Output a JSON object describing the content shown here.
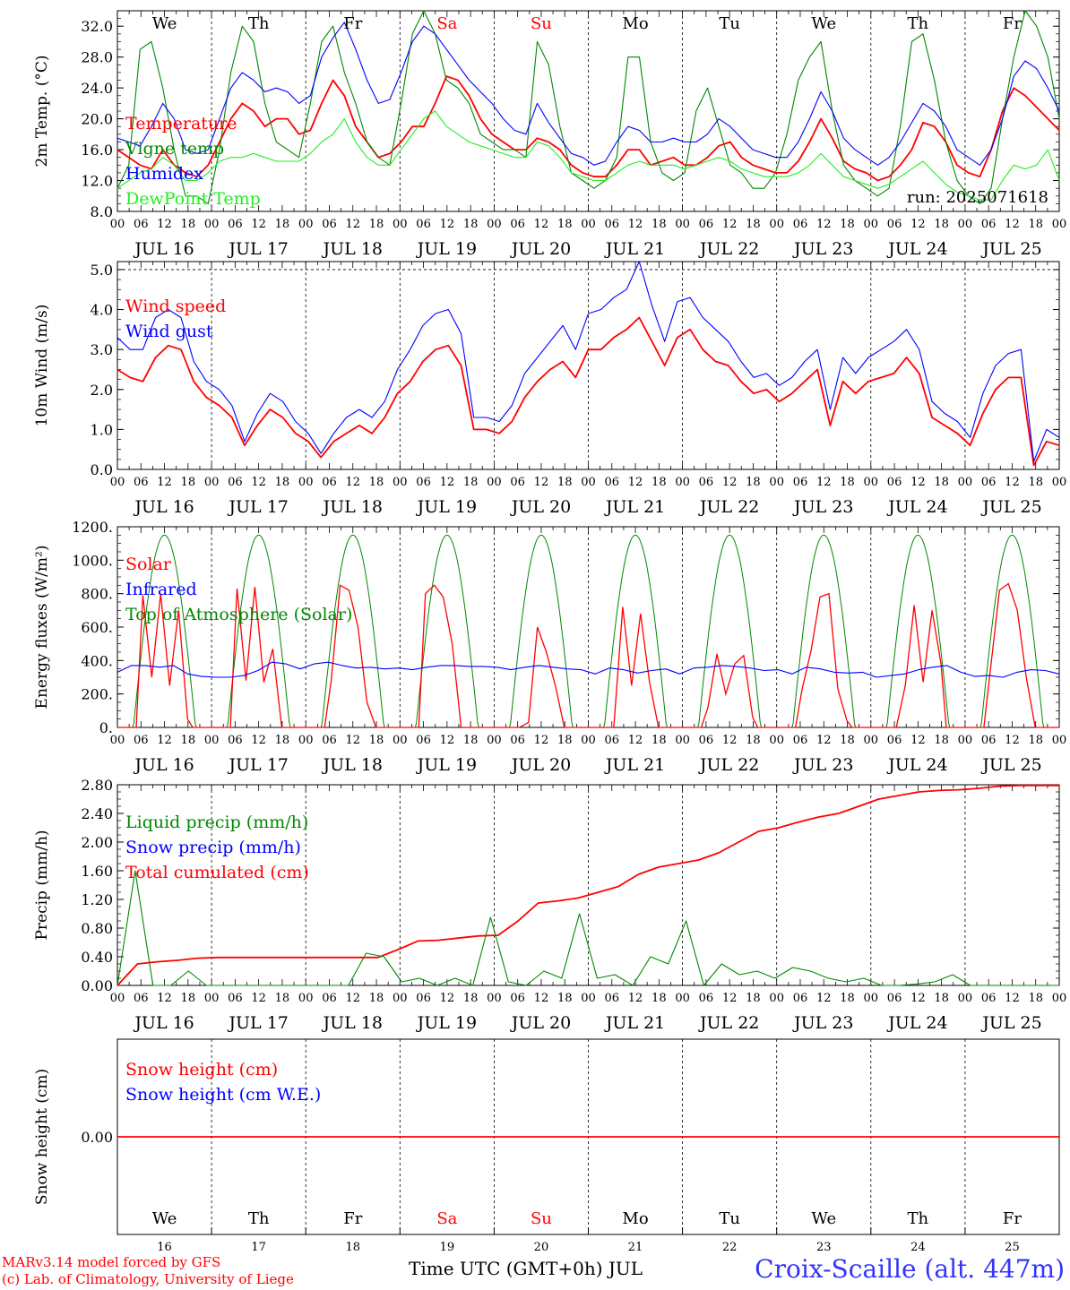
{
  "footer": {
    "model_line": "MARv3.14 model forced by GFS",
    "copyright_line": "(c) Lab. of Climatology, University of Liege",
    "xlabel": "Time UTC (GMT+0h) JUL",
    "station": "Croix-Scaille (alt. 447m)"
  },
  "colors": {
    "red": "#ff0000",
    "green": "#008800",
    "blue": "#0000ff",
    "lime": "#22ee22",
    "black": "#000000"
  },
  "chart_data": [
    {
      "type": "line",
      "ylabel": "2m Temp. (°C)",
      "ylim": [
        8,
        34
      ],
      "yticks": [
        "8.0",
        "12.0",
        "16.0",
        "20.0",
        "24.0",
        "28.0",
        "32.0"
      ],
      "run_label": "run: 2025071618",
      "day_labels": [
        "We",
        "Th",
        "Fr",
        "Sa",
        "Su",
        "Mo",
        "Tu",
        "We",
        "Th",
        "Fr"
      ],
      "day_label_colors": [
        "black",
        "black",
        "black",
        "red",
        "red",
        "black",
        "black",
        "black",
        "black",
        "black"
      ],
      "date_labels": [
        "JUL 16",
        "JUL 17",
        "JUL 18",
        "JUL 19",
        "JUL 20",
        "JUL 21",
        "JUL 22",
        "JUL 23",
        "JUL 24",
        "JUL 25"
      ],
      "hour_ticks": [
        "00",
        "06",
        "12",
        "18"
      ],
      "legend": [
        "Temperature",
        "Vigne temp",
        "Humidex",
        "DewPoint Temp"
      ],
      "series": [
        {
          "name": "Temperature",
          "color": "red",
          "values": [
            16,
            15,
            14,
            13.5,
            16,
            14,
            13,
            12.5,
            14,
            17,
            20,
            22,
            21,
            19,
            20,
            20,
            18,
            18.5,
            22,
            25,
            23,
            19,
            17,
            15,
            15.5,
            17,
            19,
            19,
            22,
            25.5,
            25,
            23,
            20,
            18,
            17,
            16,
            16,
            17.5,
            17,
            16,
            14,
            13,
            12.5,
            12.5,
            14,
            16,
            16,
            14,
            14.5,
            15,
            14,
            14,
            15,
            16.5,
            17,
            15,
            14,
            13.5,
            13,
            13,
            14.5,
            17,
            20,
            17.5,
            14.5,
            13.5,
            13,
            12,
            12.5,
            14,
            16,
            19.5,
            19,
            17,
            14,
            13,
            12.5,
            16,
            21,
            24,
            23,
            21.5,
            20,
            18.5
          ]
        },
        {
          "name": "Vigne temp",
          "color": "green",
          "values": [
            11,
            14,
            29,
            30,
            24,
            16,
            10,
            10,
            9,
            16,
            26,
            32,
            30,
            22,
            17,
            16,
            15,
            22,
            30,
            32,
            26,
            22,
            17,
            15,
            14,
            22,
            31,
            34,
            31,
            25,
            24,
            22,
            18,
            17,
            16,
            16,
            15,
            30,
            27,
            19,
            13,
            12,
            11,
            12,
            15,
            28,
            28,
            17,
            13,
            12,
            13,
            21,
            24,
            19,
            14,
            13,
            11,
            11,
            13,
            18,
            25,
            28,
            30,
            21,
            14,
            12,
            11,
            10,
            11,
            19,
            30,
            31,
            25,
            17,
            12,
            10,
            9,
            11,
            20,
            28,
            34,
            32,
            28,
            20
          ]
        },
        {
          "name": "Humidex",
          "color": "blue",
          "values": [
            17.5,
            17,
            16.5,
            19,
            22,
            20,
            16,
            15.5,
            16,
            20,
            24,
            26,
            25,
            23.5,
            24,
            23.5,
            22,
            23,
            28,
            30.5,
            32.5,
            29,
            25,
            22,
            22.5,
            26,
            30,
            32,
            31,
            29,
            27,
            25,
            23.5,
            22,
            20,
            18.5,
            18,
            22,
            19.5,
            17.5,
            15.5,
            15,
            14,
            14.5,
            17,
            19,
            18.5,
            17,
            17,
            17.5,
            17,
            17,
            18,
            20,
            19,
            17.5,
            16,
            15.5,
            15,
            15,
            17,
            20,
            23.5,
            21,
            17.5,
            16,
            15,
            14,
            15,
            17,
            19.5,
            22,
            21,
            19,
            16,
            15,
            14,
            16,
            20,
            25.5,
            27.5,
            26.5,
            24,
            21
          ]
        },
        {
          "name": "DewPoint Temp",
          "color": "lime",
          "values": [
            11,
            12,
            13,
            13.5,
            15,
            14,
            12,
            12,
            13,
            14.5,
            15,
            15,
            15.5,
            15,
            14.5,
            14.5,
            14.5,
            15.5,
            17,
            18,
            20,
            17,
            15,
            14,
            14,
            16,
            18,
            20,
            21,
            19,
            18,
            17,
            16.5,
            16,
            15.5,
            15,
            15,
            17,
            16.5,
            15,
            13,
            12.5,
            12,
            12,
            13,
            14,
            14.5,
            14,
            14,
            14,
            13.5,
            14,
            14.5,
            15,
            14.5,
            13.5,
            13,
            12.5,
            12.5,
            12.5,
            13,
            14,
            15.5,
            14,
            12.5,
            12,
            11.5,
            11,
            11.5,
            12.5,
            13.5,
            14.5,
            13,
            11.5,
            10.5,
            10,
            9.5,
            9.5,
            12,
            14,
            13.5,
            14,
            16,
            12
          ]
        }
      ]
    },
    {
      "type": "line",
      "ylabel": "10m Wind (m/s)",
      "ylim": [
        0,
        5.2
      ],
      "yticks": [
        "0.0",
        "1.0",
        "2.0",
        "3.0",
        "4.0",
        "5.0"
      ],
      "date_labels": [
        "JUL 16",
        "JUL 17",
        "JUL 18",
        "JUL 19",
        "JUL 20",
        "JUL 21",
        "JUL 22",
        "JUL 23",
        "JUL 24",
        "JUL 25"
      ],
      "hour_ticks": [
        "00",
        "06",
        "12",
        "18"
      ],
      "legend": [
        "Wind speed",
        "Wind gust"
      ],
      "series": [
        {
          "name": "Wind speed",
          "color": "red",
          "values": [
            2.5,
            2.3,
            2.2,
            2.8,
            3.1,
            3.0,
            2.2,
            1.8,
            1.6,
            1.3,
            0.6,
            1.1,
            1.5,
            1.3,
            0.9,
            0.7,
            0.3,
            0.7,
            0.9,
            1.1,
            0.9,
            1.3,
            1.9,
            2.2,
            2.7,
            3.0,
            3.1,
            2.6,
            1.0,
            1.0,
            0.9,
            1.2,
            1.8,
            2.2,
            2.5,
            2.7,
            2.3,
            3.0,
            3.0,
            3.3,
            3.5,
            3.8,
            3.2,
            2.6,
            3.3,
            3.5,
            3.0,
            2.7,
            2.6,
            2.2,
            1.9,
            2.0,
            1.7,
            1.9,
            2.2,
            2.5,
            1.1,
            2.2,
            1.9,
            2.2,
            2.3,
            2.4,
            2.8,
            2.4,
            1.3,
            1.1,
            0.9,
            0.6,
            1.4,
            2.0,
            2.3,
            2.3,
            0.1,
            0.7,
            0.6
          ]
        },
        {
          "name": "Wind gust",
          "color": "blue",
          "values": [
            3.3,
            3.0,
            3.0,
            3.8,
            4.0,
            3.8,
            2.7,
            2.2,
            2.0,
            1.6,
            0.7,
            1.4,
            1.9,
            1.7,
            1.2,
            0.9,
            0.4,
            0.9,
            1.3,
            1.5,
            1.3,
            1.7,
            2.5,
            3.0,
            3.6,
            3.9,
            4.0,
            3.4,
            1.3,
            1.3,
            1.2,
            1.6,
            2.4,
            2.8,
            3.2,
            3.6,
            3.0,
            3.9,
            4.0,
            4.3,
            4.5,
            5.2,
            4.1,
            3.2,
            4.2,
            4.3,
            3.8,
            3.5,
            3.2,
            2.7,
            2.3,
            2.4,
            2.1,
            2.3,
            2.7,
            3.0,
            1.5,
            2.8,
            2.4,
            2.8,
            3.0,
            3.2,
            3.5,
            3.0,
            1.7,
            1.4,
            1.2,
            0.8,
            1.9,
            2.6,
            2.9,
            3.0,
            0.2,
            1.0,
            0.8
          ]
        }
      ]
    },
    {
      "type": "line",
      "ylabel": "Energy fluxes (W/m²)",
      "ylim": [
        0,
        1200
      ],
      "yticks": [
        "0.",
        "200.",
        "400.",
        "600.",
        "800.",
        "1000.",
        "1200."
      ],
      "date_labels": [
        "JUL 16",
        "JUL 17",
        "JUL 18",
        "JUL 19",
        "JUL 20",
        "JUL 21",
        "JUL 22",
        "JUL 23",
        "JUL 24",
        "JUL 25"
      ],
      "hour_ticks": [
        "00",
        "06",
        "12",
        "18"
      ],
      "legend": [
        "Solar",
        "Infrared",
        "Top of Atmosphere (Solar)"
      ],
      "toa_peak": 1150,
      "solar_peaks": [
        [
          790,
          300,
          800,
          250,
          700,
          50
        ],
        [
          830,
          280,
          840,
          270,
          470,
          0
        ],
        [
          280,
          850,
          820,
          600,
          150,
          0
        ],
        [
          800,
          850,
          780,
          500,
          0,
          0
        ],
        [
          0,
          30,
          600,
          450,
          250,
          0
        ],
        [
          0,
          720,
          250,
          680,
          270,
          0
        ],
        [
          120,
          440,
          200,
          380,
          430,
          60
        ],
        [
          230,
          460,
          780,
          800,
          230,
          40
        ],
        [
          0,
          250,
          730,
          270,
          700,
          380
        ],
        [
          350,
          820,
          860,
          700,
          300,
          0
        ]
      ],
      "series": [
        {
          "name": "Infrared",
          "color": "blue",
          "values": [
            330,
            370,
            370,
            360,
            370,
            320,
            305,
            300,
            300,
            310,
            340,
            390,
            380,
            350,
            380,
            390,
            370,
            355,
            360,
            350,
            355,
            345,
            360,
            370,
            370,
            365,
            365,
            360,
            345,
            360,
            370,
            360,
            350,
            345,
            320,
            355,
            345,
            325,
            340,
            350,
            320,
            355,
            360,
            370,
            365,
            355,
            340,
            345,
            320,
            360,
            350,
            330,
            325,
            330,
            300,
            310,
            320,
            345,
            360,
            370,
            330,
            305,
            310,
            300,
            330,
            345,
            340,
            320
          ]
        }
      ]
    },
    {
      "type": "line",
      "ylabel": "Precip (mm/h)",
      "ylim": [
        0,
        2.8
      ],
      "yticks": [
        "0.00",
        "0.40",
        "0.80",
        "1.20",
        "1.60",
        "2.00",
        "2.40",
        "2.80"
      ],
      "date_labels": [
        "JUL 16",
        "JUL 17",
        "JUL 18",
        "JUL 19",
        "JUL 20",
        "JUL 21",
        "JUL 22",
        "JUL 23",
        "JUL 24",
        "JUL 25"
      ],
      "hour_ticks": [
        "00",
        "06",
        "12",
        "18"
      ],
      "legend": [
        "Liquid precip (mm/h)",
        "Snow precip (mm/h)",
        "Total cumulated (cm)"
      ],
      "series": [
        {
          "name": "Total cumulated (cm)",
          "color": "red",
          "values": [
            0,
            0.3,
            0.33,
            0.35,
            0.38,
            0.39,
            0.39,
            0.39,
            0.39,
            0.39,
            0.39,
            0.39,
            0.39,
            0.39,
            0.5,
            0.62,
            0.63,
            0.66,
            0.69,
            0.7,
            0.9,
            1.15,
            1.18,
            1.22,
            1.3,
            1.38,
            1.55,
            1.65,
            1.7,
            1.75,
            1.85,
            2.0,
            2.15,
            2.2,
            2.28,
            2.35,
            2.4,
            2.5,
            2.6,
            2.65,
            2.7,
            2.72,
            2.73,
            2.75,
            2.78,
            2.79,
            2.79,
            2.79
          ]
        },
        {
          "name": "Liquid precip (mm/h)",
          "color": "green",
          "values": [
            0,
            1.6,
            0,
            0,
            0.2,
            0,
            0,
            0,
            0,
            0,
            0,
            0,
            0,
            0,
            0.45,
            0.4,
            0.05,
            0.1,
            0,
            0.1,
            0,
            0.95,
            0.05,
            0,
            0.2,
            0.1,
            1.0,
            0.1,
            0.15,
            0,
            0.4,
            0.3,
            0.9,
            0,
            0.3,
            0.15,
            0.2,
            0.1,
            0.25,
            0.2,
            0.1,
            0.05,
            0.1,
            0,
            0,
            0.02,
            0.05,
            0.15,
            0,
            0,
            0,
            0,
            0,
            0
          ]
        }
      ]
    },
    {
      "type": "line",
      "ylabel": "Snow height (cm)",
      "ylim": [
        -1,
        1
      ],
      "yticks": [
        "0.00"
      ],
      "legend": [
        "Snow height (cm)",
        "Snow height (cm W.E.)"
      ],
      "day_labels": [
        "We",
        "Th",
        "Fr",
        "Sa",
        "Su",
        "Mo",
        "Tu",
        "We",
        "Th",
        "Fr"
      ],
      "day_label_colors": [
        "black",
        "black",
        "black",
        "red",
        "red",
        "black",
        "black",
        "black",
        "black",
        "black"
      ],
      "day_numbers": [
        "16",
        "17",
        "18",
        "19",
        "20",
        "21",
        "22",
        "23",
        "24",
        "25"
      ],
      "series": [
        {
          "name": "Snow height (cm)",
          "color": "red",
          "values": [
            0,
            0
          ]
        }
      ]
    }
  ]
}
